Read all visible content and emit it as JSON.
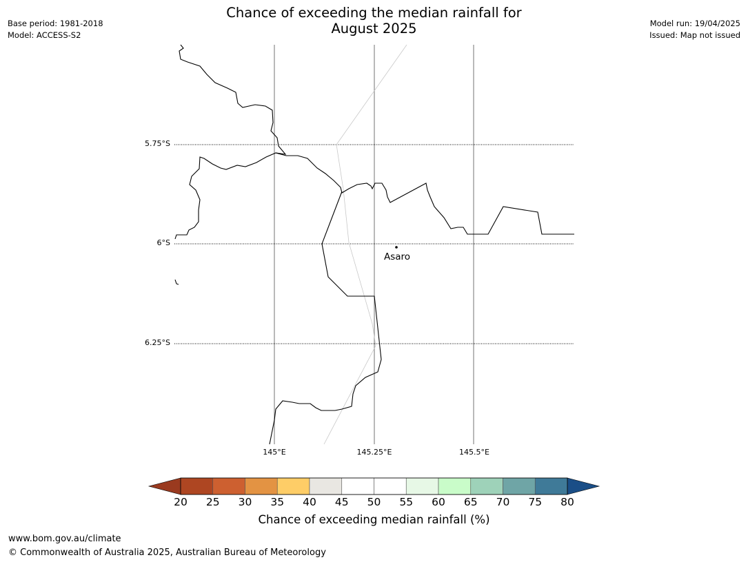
{
  "title": {
    "line1": "Chance of exceeding the median rainfall for",
    "line2": "August 2025"
  },
  "meta_left": {
    "base_period": "Base period: 1981-2018",
    "model": "Model: ACCESS-S2"
  },
  "meta_right": {
    "model_run": "Model run: 19/04/2025",
    "issued": "Issued: Map not issued"
  },
  "map": {
    "lat_labels": [
      "5.75°S",
      "6°S",
      "6.25°S"
    ],
    "lon_labels": [
      "145°E",
      "145.25°E",
      "145.5°E"
    ],
    "place": {
      "name": "Asaro"
    }
  },
  "colorbar": {
    "ticks": [
      "20",
      "25",
      "30",
      "35",
      "40",
      "45",
      "50",
      "55",
      "60",
      "65",
      "70",
      "75",
      "80"
    ],
    "colors": [
      "#ae4622",
      "#cd6030",
      "#e39343",
      "#fecd67",
      "#e9e7e2",
      "#ffffff",
      "#ffffff",
      "#e7f8e6",
      "#c9fcc9",
      "#9ed2b9",
      "#6fa5a6",
      "#3f7a98"
    ],
    "under_color": "#9a3a1f",
    "over_color": "#1a4e87",
    "label": "Chance of exceeding median rainfall (%)"
  },
  "footer": {
    "url": "www.bom.gov.au/climate",
    "copyright": "© Commonwealth of Australia 2025, Australian Bureau of Meteorology"
  }
}
